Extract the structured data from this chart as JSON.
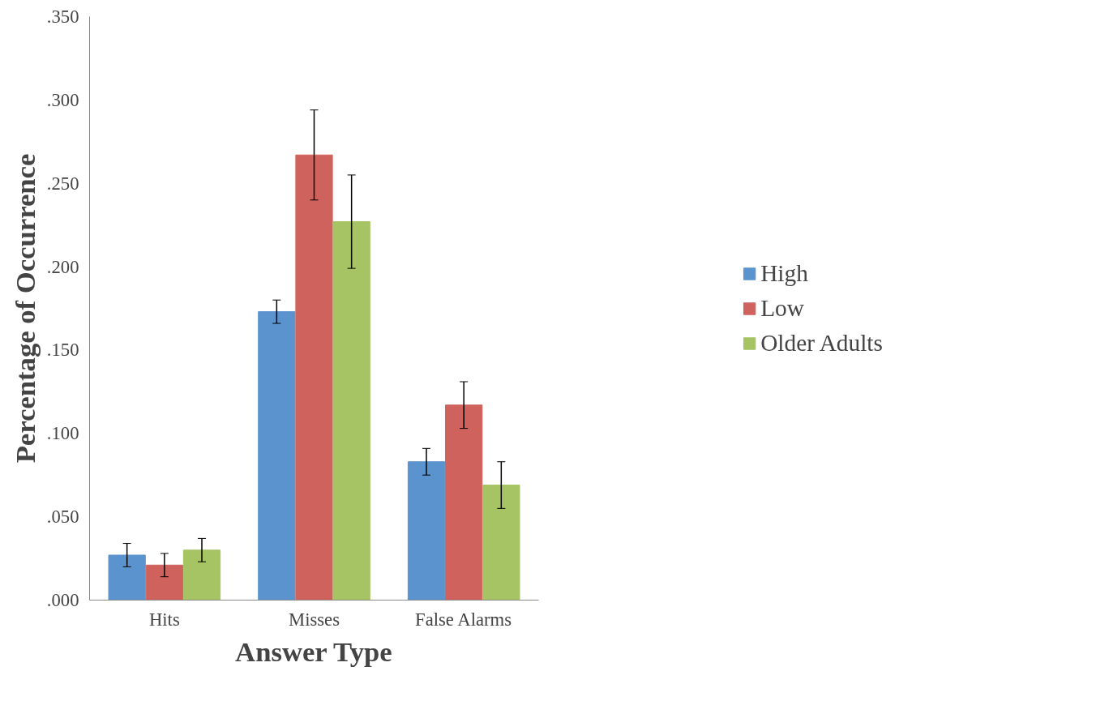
{
  "chart_data": {
    "type": "bar",
    "xlabel": "Answer Type",
    "ylabel": "Percentage of Occurrence",
    "categories": [
      "Hits",
      "Misses",
      "False Alarms"
    ],
    "series": [
      {
        "name": "High",
        "color": "#5b93ce",
        "values": [
          0.027,
          0.173,
          0.083
        ],
        "errors": [
          0.007,
          0.007,
          0.008
        ]
      },
      {
        "name": "Low",
        "color": "#d0625d",
        "values": [
          0.021,
          0.267,
          0.117
        ],
        "errors": [
          0.007,
          0.027,
          0.014
        ]
      },
      {
        "name": "Older Adults",
        "color": "#a6c464",
        "values": [
          0.03,
          0.227,
          0.069
        ],
        "errors": [
          0.007,
          0.028,
          0.014
        ]
      }
    ],
    "ylim": [
      0,
      0.35
    ],
    "yticks": [
      {
        "value": 0,
        "label": ".000"
      },
      {
        "value": 0.05,
        "label": ".050"
      },
      {
        "value": 0.1,
        "label": ".100"
      },
      {
        "value": 0.15,
        "label": ".150"
      },
      {
        "value": 0.2,
        "label": ".200"
      },
      {
        "value": 0.25,
        "label": ".250"
      },
      {
        "value": 0.3,
        "label": ".300"
      },
      {
        "value": 0.35,
        "label": ".350"
      }
    ],
    "grid": false,
    "legend": "right"
  }
}
